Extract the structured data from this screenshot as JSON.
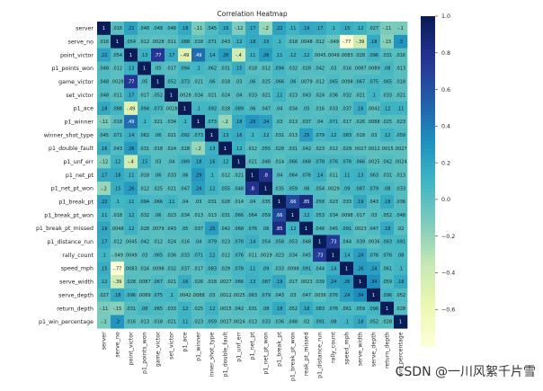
{
  "chart_data": {
    "type": "heatmap",
    "title": "Correlation Heatmap",
    "labels": [
      "server",
      "serve_no",
      "point_victor",
      "p1_points_won",
      "game_victor",
      "set_victor",
      "p1_ace",
      "p1_winner",
      "winner_shot_type",
      "p1_double_fault",
      "p1_unf_err",
      "p1_net_pt",
      "p1_net_pt_won",
      "p1_break_pt",
      "p1_break_pt_won",
      "p1_break_pt_missed",
      "p1_distance_run",
      "rally_count",
      "speed_mph",
      "serve_width",
      "serve_depth",
      "return_depth",
      "p1_win_percentage"
    ],
    "column_labels": [
      "server",
      "serve_no",
      "point_victor",
      "p1_points_won",
      "game_victor",
      "set_victor",
      "p1_ace",
      "p1_winner",
      "inner_shot_type",
      "p1_double_fault",
      "p1_unf_err",
      "p1_net_pt",
      "p1_net_pt_won",
      "p1_break_pt",
      "p1_break_pt_won",
      "reak_pt_missed",
      "p1_distance_run",
      "rally_count",
      "speed_mph",
      "serve_width",
      "serve_depth",
      "return_depth",
      "win_percentage"
    ],
    "values": [
      [
        1,
        0.016,
        0.22,
        0.048,
        0.048,
        0.048,
        0.18,
        -0.11,
        0.045,
        0.16,
        -0.12,
        0.17,
        -0.2,
        0.22,
        0.11,
        0.19,
        0.17,
        0.1,
        0.15,
        0.12,
        0.027,
        -0.11,
        -0.1
      ],
      [
        0.016,
        1,
        0.054,
        0.012,
        0.0028,
        0.011,
        0.088,
        0.018,
        0.071,
        0.043,
        0.12,
        0.18,
        0.15,
        0.1,
        0.018,
        0.0048,
        0.012,
        -0.049,
        -0.77,
        -0.39,
        0.18,
        -0.15,
        0.3
      ],
      [
        0.22,
        0.054,
        1,
        0.13,
        0.77,
        0.17,
        -0.49,
        0.49,
        0.14,
        0.26,
        -0.4,
        0.11,
        0.26,
        0.11,
        0.12,
        0.12,
        0.0045,
        0.0049,
        0.0083,
        0.028,
        0.096,
        0.031,
        0.016
      ],
      [
        0.048,
        0.012,
        0.13,
        1,
        0.05,
        0.017,
        0.094,
        0.1,
        0.062,
        0.031,
        0.15,
        0.018,
        0.012,
        0.094,
        0.032,
        0.028,
        0.042,
        0.03,
        0.016,
        0.0087,
        0.0089,
        0.08,
        0.013
      ],
      [
        0.048,
        0.0028,
        0.77,
        0.05,
        1,
        0.052,
        0.073,
        0.021,
        0.06,
        0.018,
        0.03,
        0.06,
        0.025,
        0.066,
        0.06,
        0.0079,
        0.012,
        0.065,
        0.0098,
        0.067,
        0.075,
        0.065,
        0.018
      ],
      [
        0.048,
        0.011,
        0.17,
        0.017,
        0.052,
        1,
        0.0028,
        0.034,
        0.021,
        0.024,
        0.04,
        0.033,
        0.021,
        0.11,
        0.023,
        0.043,
        0.024,
        0.036,
        0.032,
        0.021,
        0.1,
        0.033,
        0.021
      ],
      [
        0.18,
        0.088,
        -0.49,
        0.094,
        0.073,
        0.0028,
        1,
        0.1,
        0.092,
        0.028,
        0.089,
        0.06,
        0.047,
        0.04,
        0.034,
        0.05,
        0.016,
        0.033,
        0.037,
        0.16,
        0.0042,
        0.12,
        0.11
      ],
      [
        -0.11,
        0.018,
        0.49,
        0.1,
        0.021,
        0.034,
        0.1,
        1,
        0.073,
        -0.2,
        0.18,
        0.29,
        0.24,
        0.03,
        0.013,
        0.037,
        0.04,
        0.071,
        0.017,
        0.026,
        0.0088,
        0.025,
        0.023
      ],
      [
        0.045,
        0.071,
        0.14,
        0.062,
        0.06,
        0.021,
        0.092,
        0.073,
        1,
        0.13,
        0.16,
        0.1,
        0.12,
        0.031,
        0.013,
        0.25,
        0.079,
        0.12,
        0.083,
        0.018,
        0.03,
        0.12,
        0.059
      ],
      [
        0.16,
        0.043,
        0.26,
        0.031,
        0.018,
        0.024,
        0.028,
        -0.2,
        0.13,
        1,
        0.12,
        0.012,
        0.055,
        0.028,
        0.031,
        0.042,
        0.023,
        0.012,
        0.029,
        0.0027,
        0.0012,
        0.0015,
        0.0027
      ],
      [
        -0.12,
        0.12,
        -0.4,
        0.15,
        0.03,
        0.04,
        0.089,
        0.18,
        0.16,
        0.12,
        1,
        0.021,
        0.048,
        0.014,
        0.066,
        0.068,
        0.078,
        0.076,
        0.078,
        0.066,
        0.0025,
        0.042,
        0.0024
      ],
      [
        0.17,
        0.18,
        0.11,
        0.018,
        0.06,
        0.033,
        0.06,
        0.29,
        0.1,
        0.012,
        0.021,
        1,
        0.8,
        0.04,
        0.064,
        0.076,
        0.14,
        0.011,
        0.11,
        0.13,
        0.063,
        0.031,
        0.013
      ],
      [
        -0.2,
        0.15,
        0.26,
        0.012,
        0.025,
        0.021,
        0.047,
        0.24,
        0.12,
        0.055,
        0.048,
        0.8,
        1,
        0.035,
        0.059,
        0.06,
        0.054,
        0.0029,
        0.09,
        0.087,
        0.079,
        0.08,
        0.033
      ],
      [
        0.22,
        0.1,
        0.11,
        0.094,
        0.066,
        0.11,
        0.04,
        0.03,
        0.031,
        0.028,
        0.014,
        0.04,
        0.035,
        1,
        0.66,
        0.85,
        0.058,
        0.023,
        0.033,
        0.19,
        0.043,
        0.18,
        0.036
      ],
      [
        0.11,
        0.018,
        0.12,
        0.032,
        0.06,
        0.023,
        0.034,
        0.013,
        0.013,
        0.031,
        0.066,
        0.064,
        0.059,
        0.66,
        1,
        0.12,
        0.053,
        0.034,
        0.0098,
        0.017,
        0.03,
        0.052,
        0.048
      ],
      [
        0.19,
        0.0048,
        0.12,
        0.028,
        0.0079,
        0.043,
        0.05,
        0.037,
        0.25,
        0.042,
        0.068,
        0.076,
        0.06,
        0.85,
        0.12,
        1,
        0.048,
        0.045,
        0.091,
        0.0023,
        0.047,
        0.18,
        0.02
      ],
      [
        0.17,
        0.012,
        0.0045,
        0.042,
        0.012,
        0.024,
        0.016,
        0.04,
        0.079,
        0.023,
        0.078,
        0.14,
        0.054,
        0.058,
        0.053,
        0.048,
        1,
        0.73,
        0.044,
        0.039,
        0.0036,
        0.083,
        0.091
      ],
      [
        0.1,
        -0.049,
        0.0049,
        0.03,
        0.065,
        0.036,
        0.033,
        0.071,
        0.12,
        0.012,
        0.076,
        0.011,
        0.0029,
        0.023,
        0.034,
        0.045,
        0.73,
        1,
        0.14,
        0.24,
        0.076,
        0.076,
        0.08
      ],
      [
        0.15,
        -0.77,
        0.0083,
        0.016,
        0.0098,
        0.032,
        0.037,
        0.017,
        0.083,
        0.029,
        0.078,
        0.11,
        0.09,
        0.033,
        0.0098,
        0.091,
        0.044,
        0.14,
        1,
        0.26,
        0.24,
        0.061,
        0.1
      ],
      [
        0.12,
        -0.39,
        0.028,
        0.0087,
        0.067,
        0.021,
        0.16,
        0.026,
        0.018,
        0.0027,
        0.066,
        0.13,
        0.087,
        0.19,
        0.017,
        0.0023,
        0.039,
        0.24,
        0.26,
        1,
        0.34,
        0.059,
        0.18
      ],
      [
        0.027,
        0.18,
        0.096,
        0.0089,
        0.075,
        0.1,
        0.0042,
        0.0088,
        0.03,
        0.0012,
        0.0025,
        0.063,
        0.079,
        0.043,
        0.03,
        0.047,
        0.0036,
        0.076,
        0.24,
        0.34,
        1,
        0.096,
        0.052
      ],
      [
        -0.11,
        -0.15,
        0.031,
        0.08,
        0.065,
        0.033,
        0.12,
        0.025,
        0.12,
        0.0015,
        0.042,
        0.031,
        0.08,
        0.18,
        0.052,
        0.18,
        0.083,
        0.076,
        0.061,
        0.059,
        0.096,
        1,
        0.028
      ],
      [
        -0.1,
        0.3,
        0.016,
        0.013,
        0.018,
        0.021,
        0.11,
        0.023,
        0.059,
        0.0027,
        0.0024,
        0.013,
        0.033,
        0.036,
        0.048,
        0.02,
        0.091,
        0.08,
        0.1,
        0.18,
        0.052,
        0.028,
        1
      ]
    ],
    "vmin": -0.8,
    "vmax": 1.0,
    "colormap": "YlGnBu",
    "colorbar_ticks": [
      1.0,
      0.8,
      0.6,
      0.4,
      0.2,
      0.0,
      -0.2,
      -0.4,
      -0.6
    ],
    "colorbar_tick_labels": [
      "1.0",
      "0.8",
      "0.6",
      "0.4",
      "0.2",
      "0.0",
      "−0.2",
      "−0.4",
      "−0.6"
    ]
  },
  "watermark": {
    "text": "CSDN @一川风絮千片雪"
  }
}
